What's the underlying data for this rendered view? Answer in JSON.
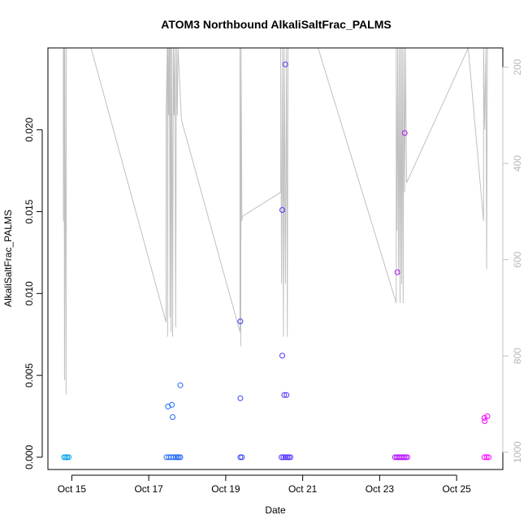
{
  "chart_data": {
    "type": "scatter",
    "title": "ATOM3 Northbound AlkaliSaltFrac_PALMS",
    "xlabel": "Date",
    "ylabel": "AlkaliSaltFrac_PALMS",
    "x_tick_labels": [
      "Oct 15",
      "Oct 17",
      "Oct 19",
      "Oct 21",
      "Oct 23",
      "Oct 25"
    ],
    "x_tick_values": [
      15,
      17,
      19,
      21,
      23,
      25
    ],
    "xlim": [
      14.38,
      26.2
    ],
    "y_ticks": [
      0.0,
      0.005,
      0.01,
      0.015,
      0.02
    ],
    "y_tick_labels": [
      "0.000",
      "0.005",
      "0.010",
      "0.015",
      "0.020"
    ],
    "ylim": [
      -0.00075,
      0.025
    ],
    "y2_ticks": [
      200,
      400,
      600,
      800,
      1000
    ],
    "y2_tick_labels": [
      "200",
      "400",
      "600",
      "800",
      "1000"
    ],
    "y2lim": [
      1036,
      160
    ],
    "y2_color": "#c0c0c0",
    "grid": false,
    "legend": "none",
    "color_scale": {
      "from": "#00a8e8",
      "mid": "#3a3aff",
      "to": "#ff00ff"
    },
    "points": [
      {
        "x": 14.8,
        "y": 0.0
      },
      {
        "x": 14.84,
        "y": 0.0
      },
      {
        "x": 14.88,
        "y": 0.0
      },
      {
        "x": 14.92,
        "y": 0.0
      },
      {
        "x": 17.46,
        "y": 0.0
      },
      {
        "x": 17.52,
        "y": 0.0
      },
      {
        "x": 17.58,
        "y": 0.0
      },
      {
        "x": 17.64,
        "y": 0.0
      },
      {
        "x": 17.7,
        "y": 0.0
      },
      {
        "x": 17.74,
        "y": 0.0
      },
      {
        "x": 17.78,
        "y": 0.0
      },
      {
        "x": 17.82,
        "y": 0.0
      },
      {
        "x": 17.5,
        "y": 0.0031
      },
      {
        "x": 17.6,
        "y": 0.0032
      },
      {
        "x": 17.62,
        "y": 0.00245
      },
      {
        "x": 17.82,
        "y": 0.0044
      },
      {
        "x": 19.38,
        "y": 0.0
      },
      {
        "x": 19.42,
        "y": 0.0
      },
      {
        "x": 19.38,
        "y": 0.0083
      },
      {
        "x": 19.38,
        "y": 0.0036
      },
      {
        "x": 20.45,
        "y": 0.0
      },
      {
        "x": 20.5,
        "y": 0.0
      },
      {
        "x": 20.55,
        "y": 0.0
      },
      {
        "x": 20.6,
        "y": 0.0
      },
      {
        "x": 20.64,
        "y": 0.0
      },
      {
        "x": 20.68,
        "y": 0.0
      },
      {
        "x": 20.47,
        "y": 0.0062
      },
      {
        "x": 20.52,
        "y": 0.0038
      },
      {
        "x": 20.58,
        "y": 0.0038
      },
      {
        "x": 20.47,
        "y": 0.0151
      },
      {
        "x": 20.55,
        "y": 0.024
      },
      {
        "x": 23.4,
        "y": 0.0
      },
      {
        "x": 23.44,
        "y": 0.0
      },
      {
        "x": 23.48,
        "y": 0.0
      },
      {
        "x": 23.52,
        "y": 0.0
      },
      {
        "x": 23.56,
        "y": 0.0
      },
      {
        "x": 23.6,
        "y": 0.0
      },
      {
        "x": 23.64,
        "y": 0.0
      },
      {
        "x": 23.68,
        "y": 0.0
      },
      {
        "x": 23.72,
        "y": 0.0
      },
      {
        "x": 23.46,
        "y": 0.0113
      },
      {
        "x": 23.65,
        "y": 0.0198
      },
      {
        "x": 25.72,
        "y": 0.0
      },
      {
        "x": 25.78,
        "y": 0.0
      },
      {
        "x": 25.83,
        "y": 0.0
      },
      {
        "x": 25.72,
        "y": 0.0024
      },
      {
        "x": 25.73,
        "y": 0.0022
      },
      {
        "x": 25.8,
        "y": 0.0025
      }
    ],
    "secondary_line": {
      "name": "",
      "x": [
        14.78,
        14.78,
        14.8,
        14.81,
        14.82,
        14.85,
        14.86,
        14.87,
        14.88,
        15.5,
        17.45,
        17.45,
        17.48,
        17.49,
        17.5,
        17.52,
        17.53,
        17.54,
        17.55,
        17.56,
        17.57,
        17.58,
        17.6,
        17.62,
        17.64,
        17.66,
        17.68,
        17.7,
        17.72,
        17.74,
        17.76,
        17.85,
        19.37,
        19.37,
        19.39,
        19.4,
        19.42,
        19.43,
        20.43,
        20.43,
        20.45,
        20.48,
        20.5,
        20.52,
        20.55,
        20.58,
        20.6,
        20.62,
        20.65,
        20.68,
        21.4,
        23.43,
        23.43,
        23.45,
        23.47,
        23.49,
        23.51,
        23.53,
        23.55,
        23.57,
        23.59,
        23.61,
        23.63,
        23.65,
        23.67,
        23.7,
        25.3,
        25.7,
        25.7,
        25.73,
        25.76,
        25.78,
        25.8,
        25.82
      ],
      "y": [
        520,
        160,
        160,
        850,
        160,
        880,
        160,
        160,
        160,
        160,
        730,
        310,
        160,
        760,
        160,
        300,
        160,
        160,
        720,
        160,
        160,
        750,
        160,
        760,
        160,
        300,
        160,
        740,
        160,
        300,
        160,
        310,
        750,
        160,
        780,
        160,
        520,
        510,
        460,
        160,
        650,
        160,
        760,
        160,
        650,
        160,
        760,
        160,
        160,
        160,
        160,
        690,
        160,
        540,
        160,
        630,
        160,
        690,
        160,
        650,
        160,
        690,
        160,
        460,
        160,
        440,
        160,
        520,
        160,
        330,
        160,
        620,
        160,
        160
      ]
    }
  }
}
